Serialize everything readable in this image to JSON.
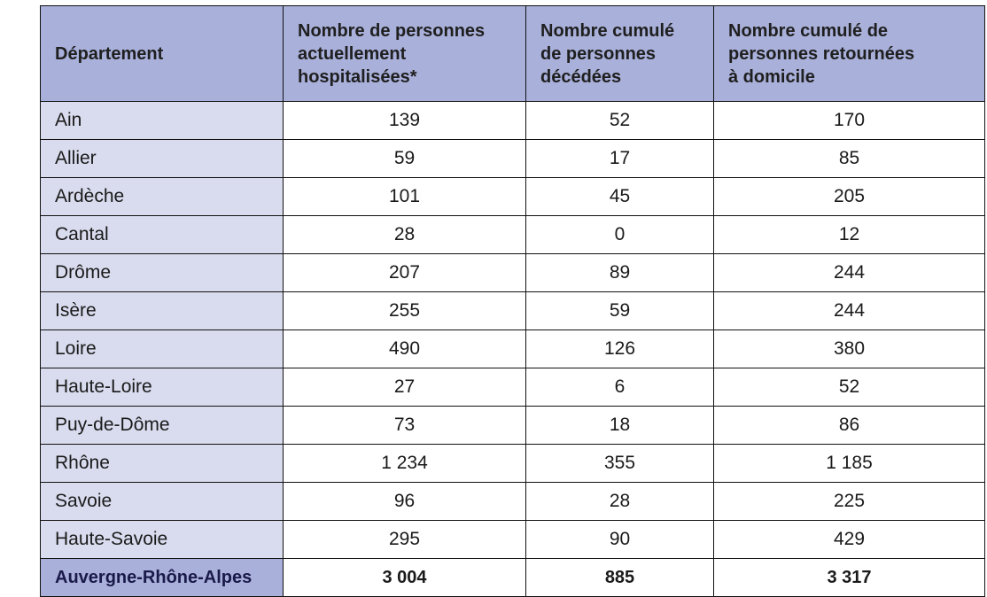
{
  "table": {
    "headers": [
      "Département",
      "Nombre de personnes\nactuellement\nhospitalisées*",
      "Nombre cumulé\nde personnes\ndécédées",
      "Nombre cumulé de\npersonnes retournées\nà domicile"
    ],
    "rows": [
      [
        "Ain",
        "139",
        "52",
        "170"
      ],
      [
        "Allier",
        "59",
        "17",
        "85"
      ],
      [
        "Ardèche",
        "101",
        "45",
        "205"
      ],
      [
        "Cantal",
        "28",
        "0",
        "12"
      ],
      [
        "Drôme",
        "207",
        "89",
        "244"
      ],
      [
        "Isère",
        "255",
        "59",
        "244"
      ],
      [
        "Loire",
        "490",
        "126",
        "380"
      ],
      [
        "Haute-Loire",
        "27",
        "6",
        "52"
      ],
      [
        "Puy-de-Dôme",
        "73",
        "18",
        "86"
      ],
      [
        "Rhône",
        "1 234",
        "355",
        "1 185"
      ],
      [
        "Savoie",
        "96",
        "28",
        "225"
      ],
      [
        "Haute-Savoie",
        "295",
        "90",
        "429"
      ]
    ],
    "total": [
      "Auvergne-Rhône-Alpes",
      "3 004",
      "885",
      "3 317"
    ]
  },
  "colors": {
    "header_bg": "#a9b0da",
    "dept_cell_bg": "#d9dcee",
    "border": "#111111"
  }
}
